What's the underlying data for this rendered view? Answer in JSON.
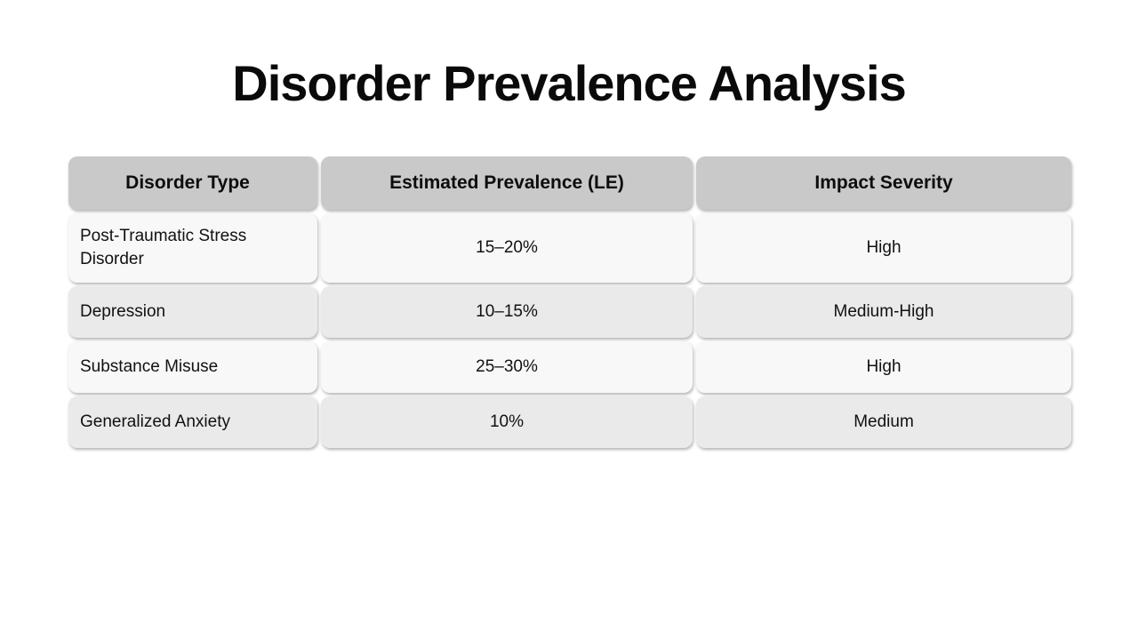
{
  "chart_data": {
    "type": "table",
    "title": "Disorder Prevalence Analysis",
    "columns": [
      "Disorder Type",
      "Estimated Prevalence (LE)",
      "Impact Severity"
    ],
    "rows": [
      [
        "Post-Traumatic Stress Disorder",
        "15–20%",
        "High"
      ],
      [
        "Depression",
        "10–15%",
        "Medium-High"
      ],
      [
        "Substance Misuse",
        "25–30%",
        "High"
      ],
      [
        "Generalized Anxiety",
        "10%",
        "Medium"
      ]
    ],
    "prevalence_ranges_pct": [
      [
        15,
        20
      ],
      [
        10,
        15
      ],
      [
        25,
        30
      ],
      [
        10,
        10
      ]
    ]
  },
  "colors": {
    "header_bg": "#c9c9c9",
    "row_light_bg": "#f8f8f8",
    "row_dark_bg": "#eaeaea",
    "background": "#ffffff",
    "text": "#111111"
  }
}
